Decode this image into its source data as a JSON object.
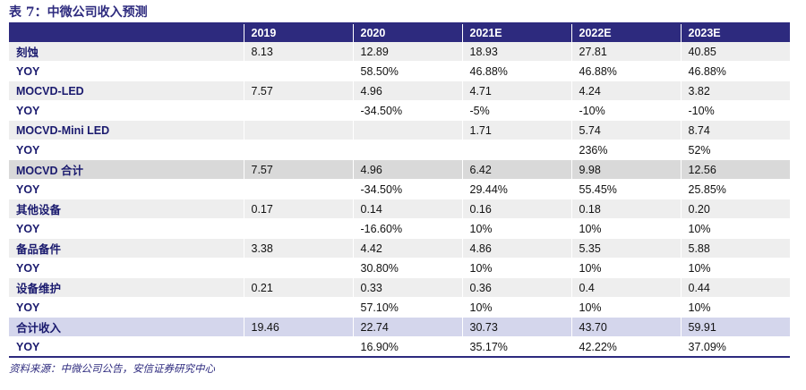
{
  "title": "表 7：中微公司收入预测",
  "headers": [
    "",
    "2019",
    "2020",
    "2021E",
    "2022E",
    "2023E"
  ],
  "rows": [
    {
      "label": "刻蚀",
      "values": [
        "8.13",
        "12.89",
        "18.93",
        "27.81",
        "40.85"
      ],
      "style": "label-row"
    },
    {
      "label": "YOY",
      "values": [
        "",
        "58.50%",
        "46.88%",
        "46.88%",
        "46.88%"
      ],
      "style": "yoy-row"
    },
    {
      "label": "MOCVD-LED",
      "values": [
        "7.57",
        "4.96",
        "4.71",
        "4.24",
        "3.82"
      ],
      "style": "label-row"
    },
    {
      "label": "YOY",
      "values": [
        "",
        "-34.50%",
        "-5%",
        "-10%",
        "-10%"
      ],
      "style": "yoy-row"
    },
    {
      "label": "MOCVD-Mini LED",
      "values": [
        "",
        "",
        "1.71",
        "5.74",
        "8.74"
      ],
      "style": "label-row"
    },
    {
      "label": "YOY",
      "values": [
        "",
        "",
        "",
        "236%",
        "52%"
      ],
      "style": "yoy-row"
    },
    {
      "label": "MOCVD 合计",
      "values": [
        "7.57",
        "4.96",
        "6.42",
        "9.98",
        "12.56"
      ],
      "style": "band-gray"
    },
    {
      "label": "YOY",
      "values": [
        "",
        "-34.50%",
        "29.44%",
        "55.45%",
        "25.85%"
      ],
      "style": "yoy-row"
    },
    {
      "label": "其他设备",
      "values": [
        "0.17",
        "0.14",
        "0.16",
        "0.18",
        "0.20"
      ],
      "style": "label-row"
    },
    {
      "label": "YOY",
      "values": [
        "",
        "-16.60%",
        "10%",
        "10%",
        "10%"
      ],
      "style": "yoy-row"
    },
    {
      "label": "备品备件",
      "values": [
        "3.38",
        "4.42",
        "4.86",
        "5.35",
        "5.88"
      ],
      "style": "label-row"
    },
    {
      "label": "YOY",
      "values": [
        "",
        "30.80%",
        "10%",
        "10%",
        "10%"
      ],
      "style": "yoy-row"
    },
    {
      "label": "设备维护",
      "values": [
        "0.21",
        "0.33",
        "0.36",
        "0.4",
        "0.44"
      ],
      "style": "label-row"
    },
    {
      "label": "YOY",
      "values": [
        "",
        "57.10%",
        "10%",
        "10%",
        "10%"
      ],
      "style": "yoy-row"
    },
    {
      "label": "合计收入",
      "values": [
        "19.46",
        "22.74",
        "30.73",
        "43.70",
        "59.91"
      ],
      "style": "band-lavender"
    },
    {
      "label": "YOY",
      "values": [
        "",
        "16.90%",
        "35.17%",
        "42.22%",
        "37.09%"
      ],
      "style": "band-white"
    }
  ],
  "source": "资料来源：中微公司公告，安信证券研究中心",
  "colors": {
    "accent": "#2d2a7e",
    "band_gray": "#d9d9d9",
    "band_lavender": "#d4d6ec"
  }
}
